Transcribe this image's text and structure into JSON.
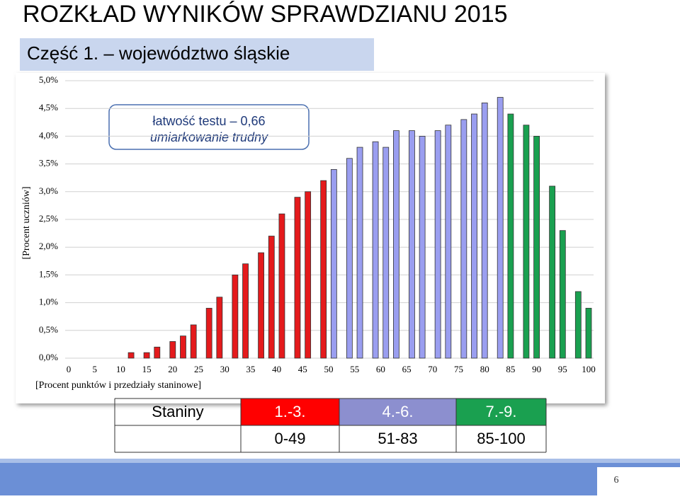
{
  "chart_data": {
    "type": "bar",
    "title": "ROZKŁAD WYNIKÓW SPRAWDZIANU 2015",
    "subtitle": "Część 1. – województwo śląskie",
    "annotation": [
      "łatwość testu – 0,66",
      "umiarkowanie trudny"
    ],
    "x_label": "[Procent punktów i przedziały staninowe]",
    "y_label": "[Procent uczniów]",
    "xlim": [
      0,
      100
    ],
    "xticks": [
      0,
      5,
      10,
      15,
      20,
      25,
      30,
      35,
      40,
      45,
      50,
      55,
      60,
      65,
      70,
      75,
      80,
      85,
      90,
      95,
      100
    ],
    "ylim": [
      0,
      5
    ],
    "yticks": [
      {
        "value": 0,
        "label": "0,0%"
      },
      {
        "value": 0.5,
        "label": "0,5%"
      },
      {
        "value": 1,
        "label": "1,0%"
      },
      {
        "value": 1.5,
        "label": "1,5%"
      },
      {
        "value": 2,
        "label": "2,0%"
      },
      {
        "value": 2.5,
        "label": "2,5%"
      },
      {
        "value": 3,
        "label": "3,0%"
      },
      {
        "value": 3.5,
        "label": "3,5%"
      },
      {
        "value": 4,
        "label": "4,0%"
      },
      {
        "value": 4.5,
        "label": "4,5%"
      },
      {
        "value": 5,
        "label": "5,0%"
      }
    ],
    "grid": true,
    "series": [
      {
        "color": "#e41a1c",
        "x": [
          12,
          15,
          17,
          20,
          22,
          24,
          27,
          29,
          32,
          34,
          37,
          39,
          41,
          44,
          46,
          49
        ],
        "values": [
          0.1,
          0.1,
          0.2,
          0.3,
          0.4,
          0.6,
          0.9,
          1.1,
          1.5,
          1.7,
          1.9,
          2.2,
          2.6,
          2.9,
          3.0,
          3.2
        ]
      },
      {
        "color": "#9a9ef0",
        "x": [
          51,
          54,
          56,
          59,
          61,
          63,
          66,
          68,
          71,
          73,
          76,
          78,
          80,
          83
        ],
        "values": [
          3.4,
          3.6,
          3.8,
          3.9,
          3.8,
          4.1,
          4.1,
          4.0,
          4.1,
          4.2,
          4.3,
          4.4,
          4.6,
          4.7
        ]
      },
      {
        "color": "#1aa050",
        "x": [
          85,
          88,
          90,
          93,
          95,
          98,
          100
        ],
        "values": [
          4.4,
          4.2,
          4.0,
          3.1,
          2.3,
          1.2,
          0.9
        ]
      }
    ]
  },
  "table": {
    "header": [
      "Staniny",
      "1.-3.",
      "4.-6.",
      "7.-9."
    ],
    "row": [
      "0-49",
      "51-83",
      "85-100"
    ],
    "colors": [
      "#ff0000",
      "#8c8fcf",
      "#1aa050"
    ]
  },
  "page_number": "6"
}
